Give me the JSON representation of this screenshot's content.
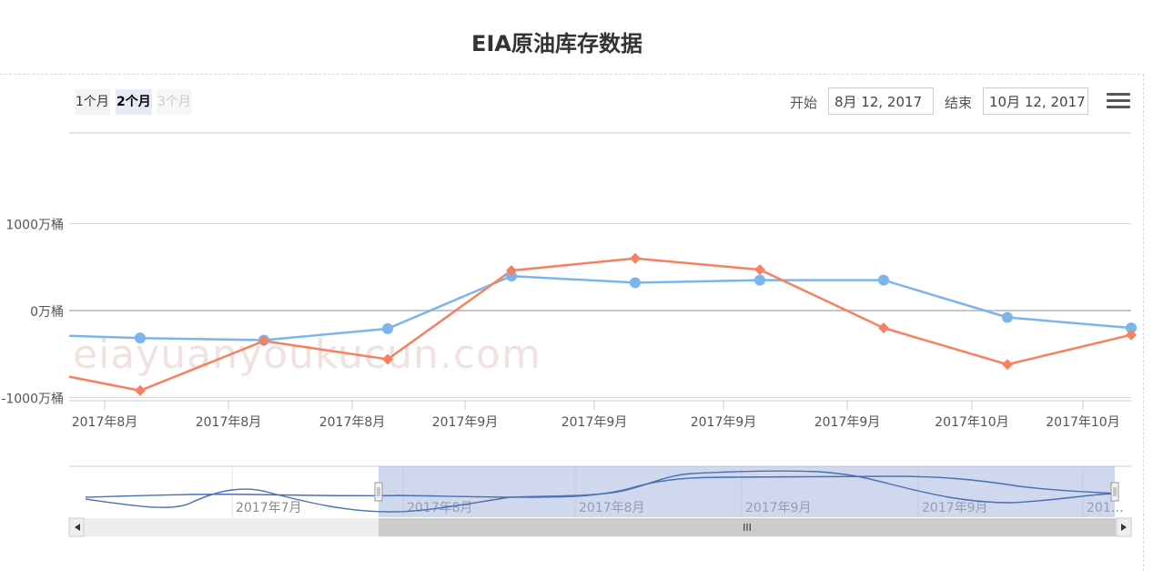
{
  "chart_title": "EIA原油库存数据",
  "range_selector": {
    "buttons": [
      "1个月",
      "2个月",
      "3个月"
    ],
    "selected_index": 1,
    "from_label": "开始",
    "from_value": "8月 12, 2017",
    "to_label": "结束",
    "to_value": "10月 12, 2017"
  },
  "watermark": "eiayuanyoukucun.com",
  "colors": {
    "series_actual": "#7cb5ec",
    "series_forecast": "#f7805e",
    "navigator_mask": "#9fb1d9"
  },
  "icons": {
    "menu": "hamburger-menu-icon",
    "scroll_left": "arrow-left-icon",
    "scroll_right": "arrow-right-icon",
    "grip": "grip-icon"
  },
  "chart_data": {
    "type": "line",
    "y_ticks": [
      "1000万桶",
      "0万桶",
      "-1000万桶"
    ],
    "y_tick_values": [
      1000,
      0,
      -1000
    ],
    "ylim": [
      -1000,
      2000
    ],
    "x_tick_labels": [
      "2017年8月",
      "2017年8月",
      "2017年8月",
      "2017年9月",
      "2017年9月",
      "2017年9月",
      "2017年9月",
      "2017年10月",
      "2017年10月"
    ],
    "points_x": [
      "2017-08-17",
      "2017-08-23",
      "2017-08-30",
      "2017-09-07",
      "2017-09-13",
      "2017-09-20",
      "2017-09-27",
      "2017-10-04",
      "2017-10-11"
    ],
    "series": [
      {
        "values": [
          -316,
          -340,
          -208,
          397,
          320,
          350,
          350,
          -79,
          -200
        ],
        "marker": "circle"
      },
      {
        "values": [
          -920,
          -350,
          -560,
          460,
          600,
          470,
          -200,
          -620,
          -280
        ],
        "marker": "diamond"
      }
    ],
    "series_left_edge": [
      -290,
      -760
    ],
    "series_right_edge": [
      -200,
      -280
    ],
    "navigator": {
      "x_tick_labels": [
        "2017年7月",
        "2017年8月",
        "2017年8月",
        "2017年9月",
        "2017年9月",
        "201…"
      ],
      "scrollbar_grip": "III"
    }
  }
}
